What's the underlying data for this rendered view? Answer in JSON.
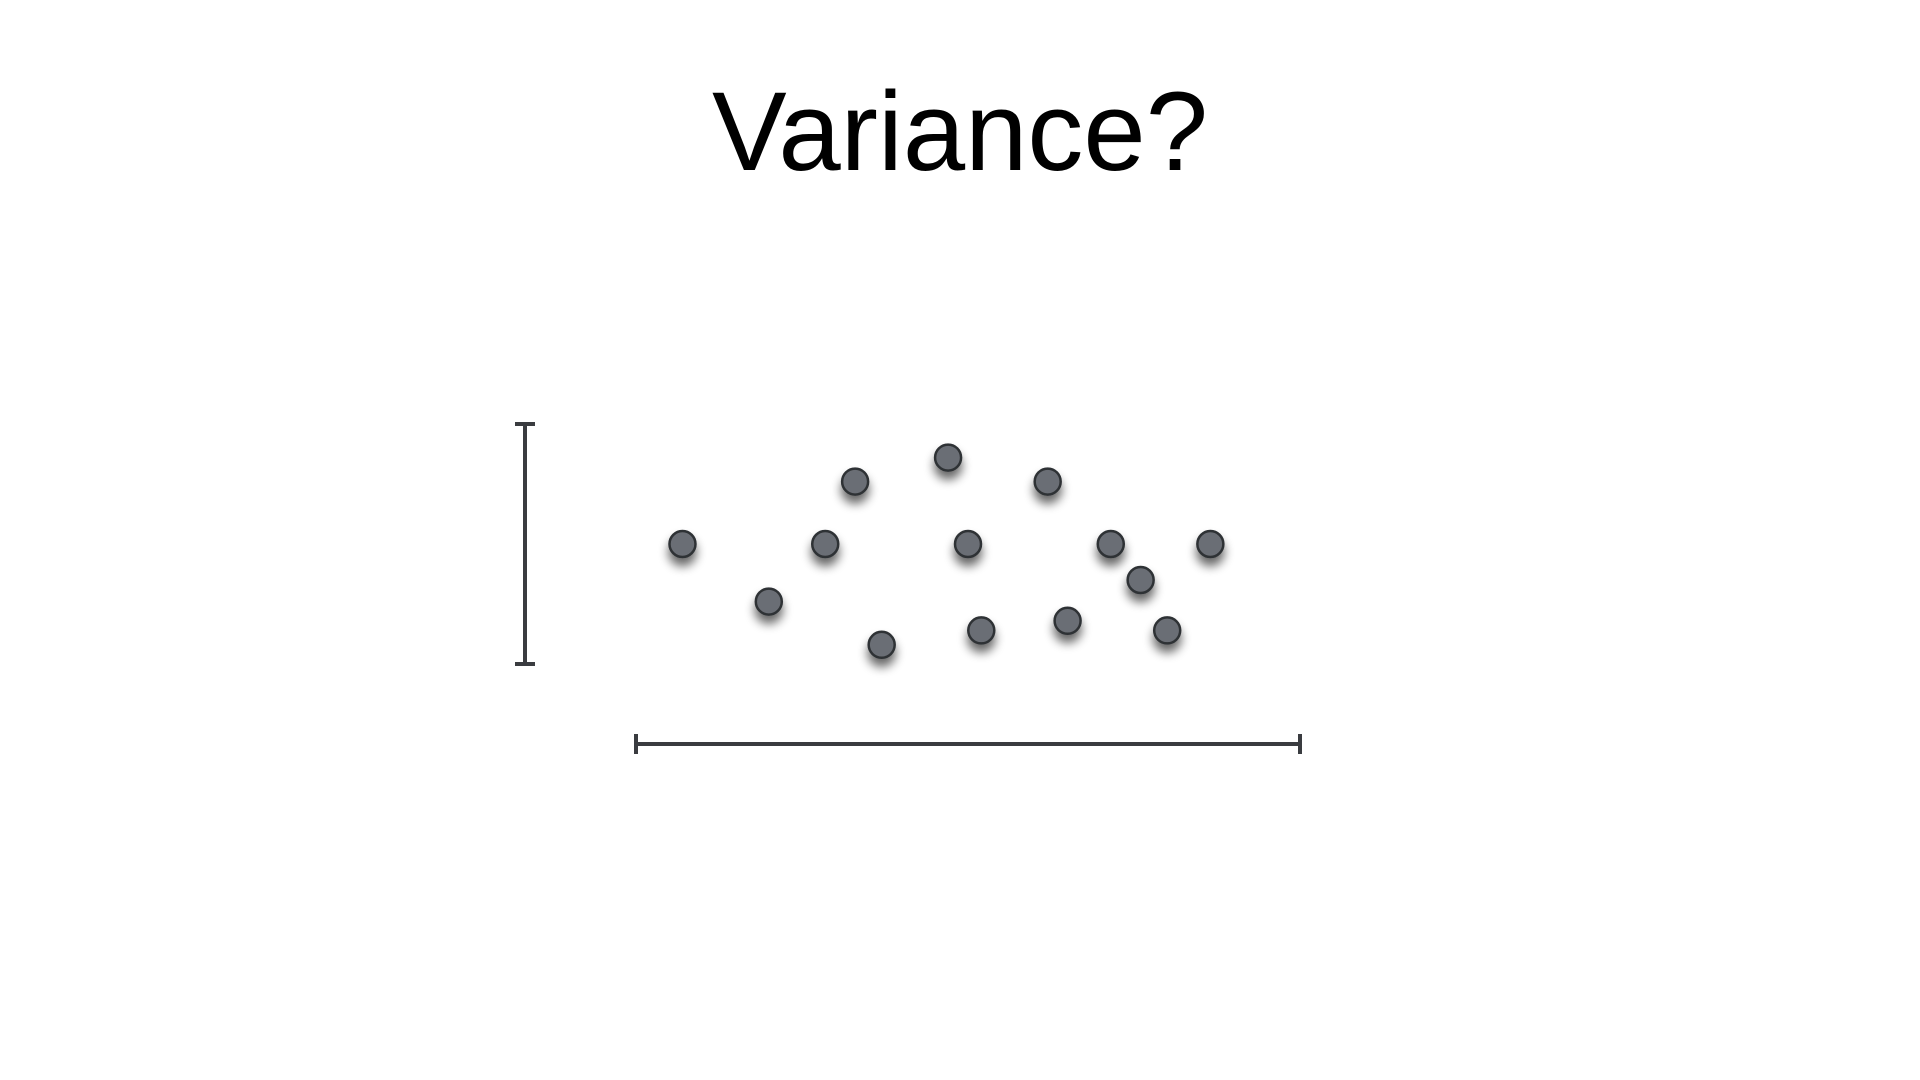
{
  "slide": {
    "title": "Variance?"
  },
  "colors": {
    "point_fill": "#6b6e74",
    "point_stroke": "#2e3034",
    "bracket": "#3a3c40",
    "background": "#ffffff"
  },
  "diagram": {
    "points": [
      {
        "x": 0.07,
        "y": 0.5
      },
      {
        "x": 0.2,
        "y": 0.74
      },
      {
        "x": 0.285,
        "y": 0.5
      },
      {
        "x": 0.33,
        "y": 0.24
      },
      {
        "x": 0.37,
        "y": 0.92
      },
      {
        "x": 0.47,
        "y": 0.14
      },
      {
        "x": 0.5,
        "y": 0.5
      },
      {
        "x": 0.52,
        "y": 0.86
      },
      {
        "x": 0.62,
        "y": 0.24
      },
      {
        "x": 0.65,
        "y": 0.82
      },
      {
        "x": 0.715,
        "y": 0.5
      },
      {
        "x": 0.76,
        "y": 0.65
      },
      {
        "x": 0.8,
        "y": 0.86
      },
      {
        "x": 0.865,
        "y": 0.5
      }
    ]
  }
}
